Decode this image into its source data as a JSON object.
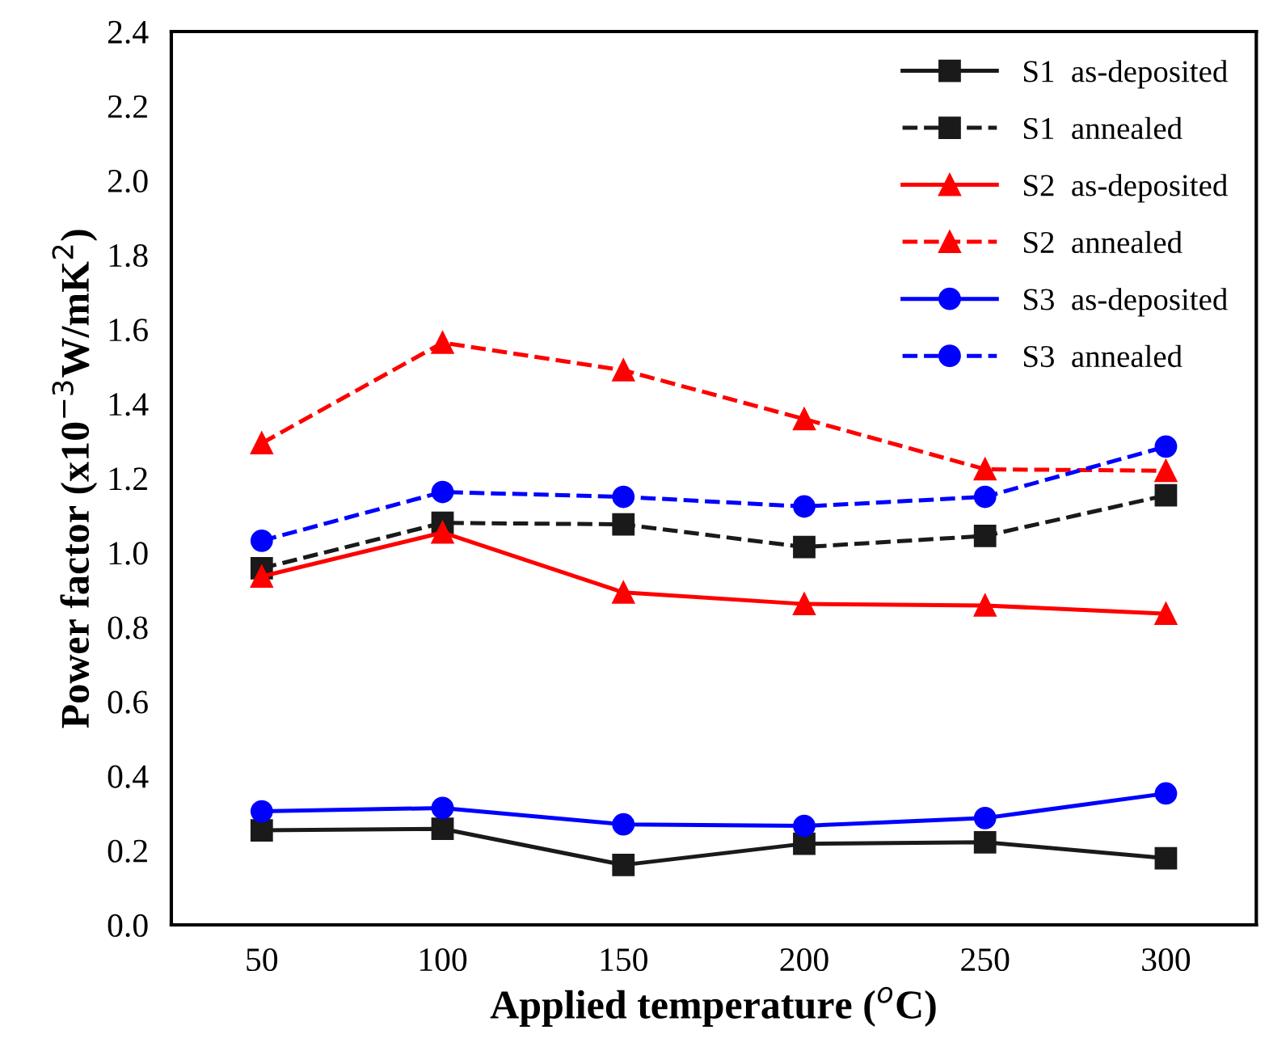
{
  "chart_data": {
    "type": "line",
    "xlabel": "Applied temperature ($^{o}$C)",
    "ylabel": "Power factor (x10$^{−3}$W/mK$^{2}$)",
    "x": [
      50,
      100,
      150,
      200,
      250,
      300
    ],
    "xlim": [
      25,
      325
    ],
    "xticks": [
      50,
      100,
      150,
      200,
      250,
      300
    ],
    "ylim": [
      0,
      2.4
    ],
    "yticks": [
      {
        "value": 0,
        "label": "0.0"
      },
      0.2,
      0.4,
      0.6,
      0.8,
      {
        "value": 1,
        "label": "1.0"
      },
      1.2,
      1.4,
      1.6,
      1.8,
      {
        "value": 2,
        "label": "2.0"
      },
      2.2,
      2.4
    ],
    "grid": false,
    "legend": "top right",
    "series": [
      {
        "name": "S1  as-deposited",
        "color": "#1a1a1a",
        "marker": "square",
        "line_style": "solid",
        "values": [
          0.254,
          0.258,
          0.161,
          0.218,
          0.222,
          0.179
        ]
      },
      {
        "name": "S1  annealed",
        "color": "#1a1a1a",
        "marker": "square",
        "line_style": "dashed",
        "values": [
          0.958,
          1.08,
          1.076,
          1.015,
          1.045,
          1.154
        ]
      },
      {
        "name": "S2  as-deposited",
        "color": "#ff0000",
        "marker": "triangle",
        "line_style": "solid",
        "values": [
          0.936,
          1.054,
          0.893,
          0.862,
          0.858,
          0.836
        ]
      },
      {
        "name": "S2  annealed",
        "color": "#ff0000",
        "marker": "triangle",
        "line_style": "dashed",
        "values": [
          1.294,
          1.564,
          1.49,
          1.359,
          1.224,
          1.22
        ]
      },
      {
        "name": "S3  as-deposited",
        "color": "#0000ff",
        "marker": "circle",
        "line_style": "solid",
        "values": [
          0.305,
          0.314,
          0.27,
          0.266,
          0.287,
          0.353
        ]
      },
      {
        "name": "S3  annealed",
        "color": "#0000ff",
        "marker": "circle",
        "line_style": "dashed",
        "values": [
          1.032,
          1.163,
          1.15,
          1.124,
          1.15,
          1.285
        ]
      }
    ]
  }
}
